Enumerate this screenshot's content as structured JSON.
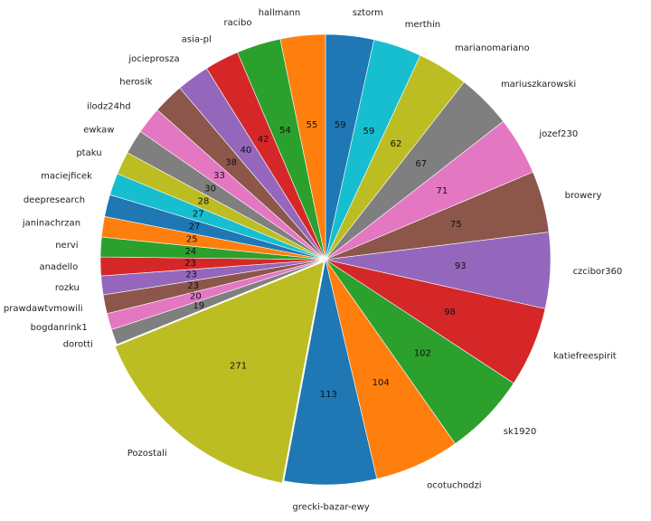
{
  "chart_data": {
    "type": "pie",
    "title": "",
    "start_angle_deg": 90,
    "direction": "clockwise",
    "legend": "none",
    "series": [
      {
        "categories": [
          "sztorm",
          "merthin",
          "marianomariano",
          "mariuszkarowski",
          "jozef230",
          "browery",
          "czcibor360",
          "katiefreespirit",
          "sk1920",
          "ocotuchodzi",
          "grecki-bazar-ewy",
          "Pozostali",
          "dorotti",
          "bogdanrink1",
          "prawdawtvmowili",
          "rozku",
          "anadello",
          "nervi",
          "janinachrzan",
          "deepresearch",
          "maciejficek",
          "ptaku",
          "ewkaw",
          "ilodz24hd",
          "herosik",
          "jociepros za",
          "asia-pl",
          "racibo",
          "hallmann"
        ],
        "values": [
          59,
          59,
          62,
          67,
          71,
          75,
          93,
          98,
          102,
          104,
          113,
          271,
          19,
          20,
          23,
          23,
          23,
          24,
          25,
          27,
          27,
          28,
          30,
          33,
          38,
          40,
          42,
          54,
          55
        ],
        "value_labels": [
          "59",
          "59",
          "62",
          "67",
          "71",
          "75",
          "93",
          "98",
          "102",
          "104",
          "113",
          "271",
          "19",
          "20",
          "23",
          "23",
          "23",
          "24",
          "25",
          "27",
          "27",
          "28",
          "30",
          "33",
          "38",
          "40",
          "42",
          "54",
          "55"
        ],
        "colors": [
          "#1f77b4",
          "#17becf",
          "#bcbd22",
          "#7f7f7f",
          "#e377c2",
          "#8c564b",
          "#9467bd",
          "#d62728",
          "#2ca02c",
          "#ff7f0e",
          "#1f77b4",
          "#bcbd22",
          "#7f7f7f",
          "#e377c2",
          "#8c564b",
          "#9467bd",
          "#d62728",
          "#2ca02c",
          "#ff7f0e",
          "#1f77b4",
          "#17becf",
          "#bcbd22",
          "#7f7f7f",
          "#e377c2",
          "#8c564b",
          "#9467bd",
          "#d62728",
          "#2ca02c",
          "#ff7f0e"
        ],
        "exploded": [
          "Pozostali"
        ]
      }
    ]
  }
}
